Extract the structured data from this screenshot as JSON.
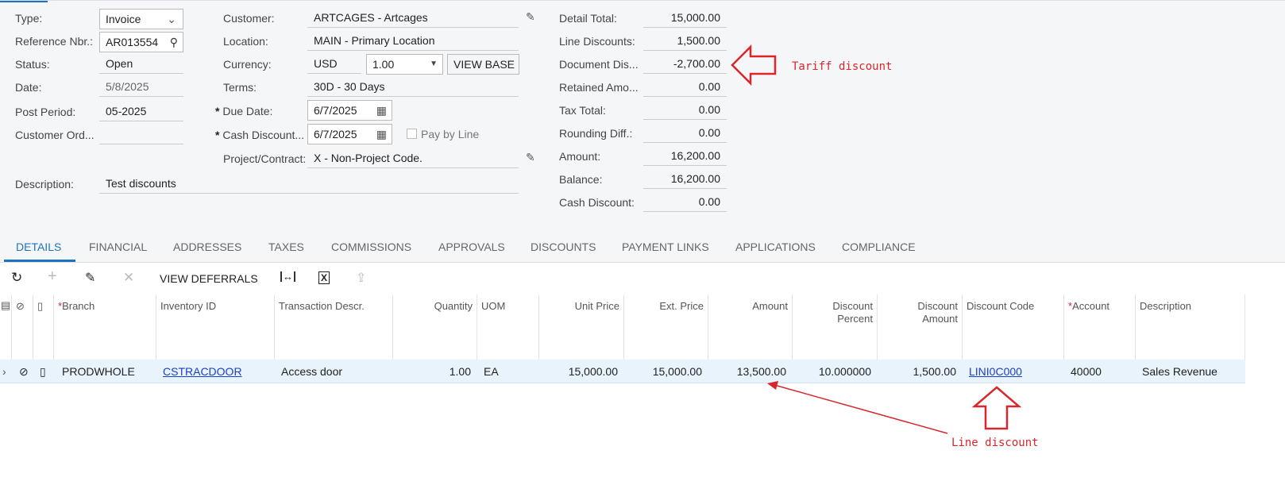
{
  "header": {
    "left": [
      {
        "label": "Type:",
        "value": "Invoice"
      },
      {
        "label": "Reference Nbr.:",
        "value": "AR013554"
      },
      {
        "label": "Status:",
        "value": "Open"
      },
      {
        "label": "Date:",
        "value": "5/8/2025"
      },
      {
        "label": "Post Period:",
        "value": "05-2025"
      },
      {
        "label": "Customer Ord...",
        "value": ""
      }
    ],
    "description": {
      "label": "Description:",
      "value": "Test discounts"
    },
    "middle": {
      "customer": {
        "label": "Customer:",
        "value": "ARTCAGES - Artcages"
      },
      "location": {
        "label": "Location:",
        "value": "MAIN - Primary Location"
      },
      "currency": {
        "label": "Currency:",
        "value": "USD",
        "rate": "1.00",
        "button": "VIEW BASE"
      },
      "terms": {
        "label": "Terms:",
        "value": "30D - 30 Days"
      },
      "due_date": {
        "label": "Due Date:",
        "value": "6/7/2025"
      },
      "cash_discount": {
        "label": "Cash Discount...",
        "value": "6/7/2025"
      },
      "pay_by_line": {
        "label": "Pay by Line",
        "checked": false
      },
      "project": {
        "label": "Project/Contract:",
        "value": "X - Non-Project Code."
      }
    },
    "totals": [
      {
        "label": "Detail Total:",
        "value": "15,000.00"
      },
      {
        "label": "Line Discounts:",
        "value": "1,500.00"
      },
      {
        "label": "Document Dis...",
        "value": "-2,700.00"
      },
      {
        "label": "Retained Amo...",
        "value": "0.00"
      },
      {
        "label": "Tax Total:",
        "value": "0.00"
      },
      {
        "label": "Rounding Diff.:",
        "value": "0.00"
      },
      {
        "label": "Amount:",
        "value": "16,200.00"
      },
      {
        "label": "Balance:",
        "value": "16,200.00"
      },
      {
        "label": "Cash Discount:",
        "value": "0.00"
      }
    ]
  },
  "tabs": [
    "DETAILS",
    "FINANCIAL",
    "ADDRESSES",
    "TAXES",
    "COMMISSIONS",
    "APPROVALS",
    "DISCOUNTS",
    "PAYMENT LINKS",
    "APPLICATIONS",
    "COMPLIANCE"
  ],
  "toolbar": {
    "view_deferrals": "VIEW DEFERRALS"
  },
  "columns": [
    "Branch",
    "Inventory ID",
    "Transaction Descr.",
    "Quantity",
    "UOM",
    "Unit Price",
    "Ext. Price",
    "Amount",
    "Discount Percent",
    "Discount Amount",
    "Discount Code",
    "Account",
    "Description"
  ],
  "rows": [
    {
      "branch": "PRODWHOLE",
      "inventory_id": "CSTRACDOOR",
      "descr": "Access door",
      "quantity": "1.00",
      "uom": "EA",
      "unit_price": "15,000.00",
      "ext_price": "15,000.00",
      "amount": "13,500.00",
      "discount_percent": "10.000000",
      "discount_amount": "1,500.00",
      "discount_code": "LINI0C000",
      "account": "40000",
      "description": "Sales Revenue"
    }
  ],
  "annotations": {
    "tariff": "Tariff discount",
    "line": "Line discount",
    "color": "#d9262b"
  },
  "accent": "#1e73be"
}
